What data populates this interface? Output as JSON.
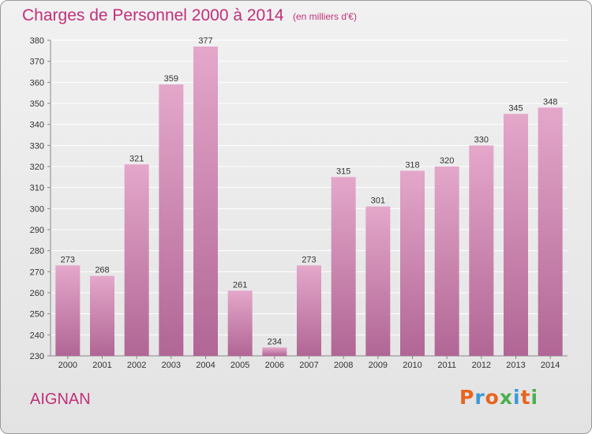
{
  "title": "Charges de Personnel 2000 à 2014",
  "subtitle": "(en milliers d'€)",
  "town": "AIGNAN",
  "logo": {
    "text": "Proxiti",
    "letter_colors": [
      "#e8641e",
      "#3a9ad9",
      "#e8641e",
      "#4caf50",
      "#3a9ad9",
      "#e8641e",
      "#4caf50"
    ]
  },
  "colors": {
    "title": "#c0307a",
    "bar_light": "#e4a7ca",
    "bar_dark": "#b16695",
    "grid": "#ffffff",
    "axis": "#888888"
  },
  "chart_data": {
    "type": "bar",
    "categories": [
      "2000",
      "2001",
      "2002",
      "2003",
      "2004",
      "2005",
      "2006",
      "2007",
      "2008",
      "2009",
      "2010",
      "2011",
      "2012",
      "2013",
      "2014"
    ],
    "values": [
      273,
      268,
      321,
      359,
      377,
      261,
      234,
      273,
      315,
      301,
      318,
      320,
      330,
      345,
      348
    ],
    "ylim": [
      230,
      380
    ],
    "yticks": [
      230,
      240,
      250,
      260,
      270,
      280,
      290,
      300,
      310,
      320,
      330,
      340,
      350,
      360,
      370,
      380
    ],
    "grid": true,
    "data_labels": true
  }
}
